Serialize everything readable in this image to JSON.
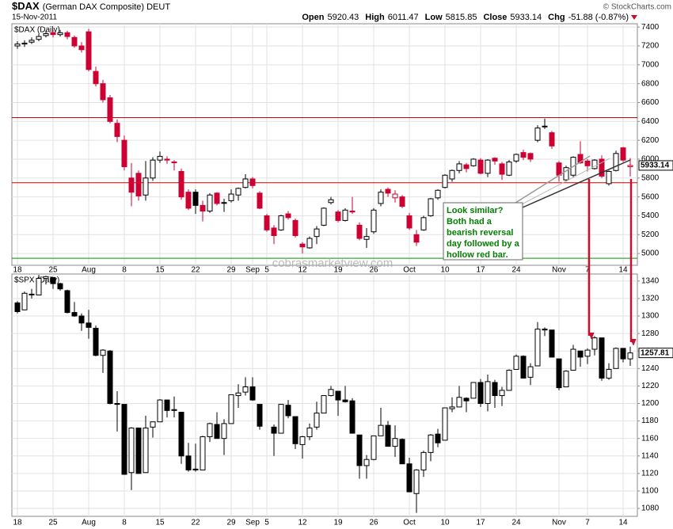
{
  "header": {
    "symbol": "$DAX",
    "name": "(German DAX Composite) DEUT",
    "date": "15-Nov-2011",
    "copyright": "© StockCharts.com",
    "quote": [
      {
        "label": "Open",
        "value": "5920.43"
      },
      {
        "label": "High",
        "value": "6011.47"
      },
      {
        "label": "Low",
        "value": "5815.85"
      },
      {
        "label": "Close",
        "value": "5933.14"
      },
      {
        "label": "Chg",
        "value": "-51.88 (-0.87%)"
      }
    ]
  },
  "watermark": "cobrasmarketview.com",
  "annotation": {
    "lines": [
      "Look similar?",
      "Both had a",
      "bearish reversal",
      "day followed by a",
      "hollow red bar."
    ]
  },
  "chart_data": [
    {
      "type": "candlestick",
      "title": "$DAX (Daily)",
      "up_color": "#000000",
      "down_color": "#cc0033",
      "grid": true,
      "categories": [
        "18",
        null,
        null,
        null,
        null,
        "25",
        null,
        null,
        null,
        null,
        "Aug",
        null,
        null,
        null,
        null,
        "8",
        null,
        null,
        null,
        null,
        "15",
        null,
        null,
        null,
        null,
        "22",
        null,
        null,
        null,
        null,
        "29",
        null,
        null,
        "Sep",
        null,
        "5",
        null,
        null,
        null,
        null,
        "12",
        null,
        null,
        null,
        null,
        "19",
        null,
        null,
        null,
        null,
        "26",
        null,
        null,
        null,
        null,
        "Oct",
        null,
        null,
        null,
        null,
        "10",
        null,
        null,
        null,
        null,
        "17",
        null,
        null,
        null,
        null,
        "24",
        null,
        null,
        null,
        null,
        null,
        "Nov",
        null,
        null,
        null,
        "7",
        null,
        null,
        null,
        null,
        "14",
        null
      ],
      "values": [
        [
          7200,
          7250,
          7170,
          7220
        ],
        [
          7220,
          7260,
          7190,
          7230
        ],
        [
          7240,
          7290,
          7220,
          7260
        ],
        [
          7270,
          7330,
          7250,
          7300
        ],
        [
          7310,
          7360,
          7290,
          7330
        ],
        [
          7340,
          7370,
          7290,
          7320
        ],
        [
          7320,
          7370,
          7300,
          7340
        ],
        [
          7340,
          7360,
          7270,
          7300
        ],
        [
          7290,
          7310,
          7180,
          7200
        ],
        [
          7200,
          7240,
          7130,
          7160
        ],
        [
          7350,
          7380,
          6930,
          6950
        ],
        [
          6930,
          6980,
          6770,
          6800
        ],
        [
          6800,
          6840,
          6600,
          6630
        ],
        [
          6650,
          6680,
          6380,
          6400
        ],
        [
          6380,
          6420,
          6180,
          6240
        ],
        [
          6200,
          6250,
          5880,
          5920
        ],
        [
          5800,
          5960,
          5500,
          5650
        ],
        [
          5850,
          5880,
          5560,
          5610
        ],
        [
          5620,
          5980,
          5560,
          5800
        ],
        [
          5800,
          6020,
          5770,
          5990
        ],
        [
          5990,
          6080,
          5960,
          6030
        ],
        [
          6000,
          6030,
          5950,
          5990
        ],
        [
          5970,
          5990,
          5880,
          5970
        ],
        [
          5870,
          5900,
          5570,
          5600
        ],
        [
          5650,
          5680,
          5460,
          5480
        ],
        [
          5650,
          5680,
          5420,
          5510
        ],
        [
          5510,
          5560,
          5340,
          5450
        ],
        [
          5450,
          5640,
          5430,
          5620
        ],
        [
          5640,
          5650,
          5510,
          5530
        ],
        [
          5540,
          5580,
          5440,
          5540
        ],
        [
          5560,
          5680,
          5540,
          5630
        ],
        [
          5620,
          5700,
          5560,
          5690
        ],
        [
          5700,
          5840,
          5690,
          5790
        ],
        [
          5790,
          5810,
          5690,
          5720
        ],
        [
          5640,
          5660,
          5470,
          5480
        ],
        [
          5400,
          5420,
          5230,
          5250
        ],
        [
          5270,
          5300,
          5100,
          5190
        ],
        [
          5250,
          5410,
          5240,
          5400
        ],
        [
          5420,
          5450,
          5360,
          5380
        ],
        [
          5350,
          5370,
          5170,
          5190
        ],
        [
          5100,
          5120,
          5000,
          5070
        ],
        [
          5060,
          5180,
          5050,
          5160
        ],
        [
          5180,
          5290,
          5100,
          5260
        ],
        [
          5300,
          5490,
          5290,
          5480
        ],
        [
          5540,
          5600,
          5520,
          5570
        ],
        [
          5440,
          5460,
          5330,
          5350
        ],
        [
          5350,
          5480,
          5340,
          5460
        ],
        [
          5450,
          5600,
          5420,
          5440
        ],
        [
          5300,
          5330,
          5140,
          5160
        ],
        [
          5150,
          5270,
          5060,
          5180
        ],
        [
          5230,
          5480,
          5210,
          5460
        ],
        [
          5530,
          5680,
          5500,
          5650
        ],
        [
          5680,
          5700,
          5600,
          5640
        ],
        [
          5590,
          5670,
          5540,
          5630
        ],
        [
          5600,
          5620,
          5480,
          5500
        ],
        [
          5400,
          5430,
          5250,
          5270
        ],
        [
          5200,
          5250,
          5080,
          5120
        ],
        [
          5250,
          5400,
          5240,
          5380
        ],
        [
          5400,
          5590,
          5390,
          5580
        ],
        [
          5590,
          5680,
          5570,
          5670
        ],
        [
          5700,
          5840,
          5690,
          5830
        ],
        [
          5790,
          5890,
          5760,
          5880
        ],
        [
          5880,
          5980,
          5850,
          5950
        ],
        [
          5940,
          5960,
          5860,
          5900
        ],
        [
          5930,
          6010,
          5920,
          6000
        ],
        [
          5990,
          6010,
          5840,
          5850
        ],
        [
          5850,
          6000,
          5810,
          5990
        ],
        [
          6010,
          6020,
          5940,
          5980
        ],
        [
          5950,
          5970,
          5780,
          5840
        ],
        [
          5830,
          5990,
          5820,
          5970
        ],
        [
          5980,
          6060,
          5960,
          6050
        ],
        [
          6070,
          6100,
          5990,
          6020
        ],
        [
          6060,
          6070,
          5970,
          6000
        ],
        [
          6200,
          6360,
          6180,
          6330
        ],
        [
          6350,
          6430,
          6320,
          6350
        ],
        [
          6280,
          6300,
          6110,
          6140
        ],
        [
          5960,
          5980,
          5760,
          5830
        ],
        [
          5780,
          5930,
          5760,
          5910
        ],
        [
          5830,
          6030,
          5810,
          6020
        ],
        [
          6050,
          6190,
          5950,
          5960
        ],
        [
          5980,
          6000,
          5870,
          5930
        ],
        [
          5900,
          6000,
          5890,
          5990
        ],
        [
          6000,
          6040,
          5800,
          5820
        ],
        [
          5740,
          5880,
          5720,
          5870
        ],
        [
          5880,
          6090,
          5870,
          6060
        ],
        [
          6120,
          6130,
          5970,
          5990
        ],
        [
          5920.43,
          6011.47,
          5815.85,
          5933.14
        ]
      ],
      "last_label": "5933.14",
      "levels": [
        {
          "value": 6440,
          "color": "#cc0000"
        },
        {
          "value": 5750,
          "color": "#cc0000"
        },
        {
          "value": 4950,
          "color": "#009900"
        }
      ],
      "ylim": [
        4875,
        7435
      ],
      "yticks": [
        5000,
        5200,
        5400,
        5600,
        5800,
        6000,
        6200,
        6400,
        6600,
        6800,
        7000,
        7200,
        7400
      ]
    },
    {
      "type": "candlestick",
      "title": "$SPX (Daily)",
      "up_color": "#000000",
      "down_color": "#000000",
      "grid": true,
      "categories": [
        "18",
        null,
        null,
        null,
        null,
        "25",
        null,
        null,
        null,
        null,
        "Aug",
        null,
        null,
        null,
        null,
        "8",
        null,
        null,
        null,
        null,
        "15",
        null,
        null,
        null,
        null,
        "22",
        null,
        null,
        null,
        null,
        "29",
        null,
        null,
        "Sep",
        null,
        "5",
        null,
        null,
        null,
        null,
        "12",
        null,
        null,
        null,
        null,
        "19",
        null,
        null,
        null,
        null,
        "26",
        null,
        null,
        null,
        null,
        "Oct",
        null,
        null,
        null,
        null,
        "10",
        null,
        null,
        null,
        null,
        "17",
        null,
        null,
        null,
        null,
        "24",
        null,
        null,
        null,
        null,
        null,
        "Nov",
        null,
        null,
        null,
        "7",
        null,
        null,
        null,
        null,
        "14",
        null
      ],
      "values": [
        [
          1315,
          1317,
          1303,
          1305
        ],
        [
          1307,
          1328,
          1307,
          1326
        ],
        [
          1325,
          1331,
          1320,
          1325
        ],
        [
          1324,
          1347,
          1324,
          1343
        ],
        [
          1343,
          1346,
          1336,
          1345
        ],
        [
          1344,
          1344,
          1331,
          1337
        ],
        [
          1337,
          1338,
          1329,
          1331
        ],
        [
          1329,
          1330,
          1303,
          1304
        ],
        [
          1304,
          1316,
          1299,
          1300
        ],
        [
          1300,
          1303,
          1283,
          1292
        ],
        [
          1292,
          1307,
          1274,
          1287
        ],
        [
          1286,
          1289,
          1254,
          1255
        ],
        [
          1255,
          1262,
          1235,
          1261
        ],
        [
          1260,
          1261,
          1199,
          1200
        ],
        [
          1200,
          1214,
          1168,
          1199
        ],
        [
          1199,
          1199,
          1119,
          1119
        ],
        [
          1121,
          1173,
          1101,
          1172
        ],
        [
          1172,
          1172,
          1120,
          1120
        ],
        [
          1121,
          1186,
          1121,
          1172
        ],
        [
          1173,
          1179,
          1161,
          1179
        ],
        [
          1179,
          1205,
          1179,
          1204
        ],
        [
          1204,
          1204,
          1184,
          1192
        ],
        [
          1192,
          1208,
          1184,
          1193
        ],
        [
          1190,
          1190,
          1131,
          1140
        ],
        [
          1140,
          1155,
          1122,
          1124
        ],
        [
          1125,
          1154,
          1122,
          1124
        ],
        [
          1124,
          1163,
          1124,
          1162
        ],
        [
          1162,
          1178,
          1156,
          1177
        ],
        [
          1176,
          1190,
          1160,
          1160
        ],
        [
          1160,
          1182,
          1141,
          1177
        ],
        [
          1177,
          1210,
          1177,
          1210
        ],
        [
          1209,
          1222,
          1195,
          1212
        ],
        [
          1213,
          1230,
          1209,
          1219
        ],
        [
          1219,
          1230,
          1203,
          1204
        ],
        [
          1199,
          1199,
          1170,
          1174
        ],
        null,
        [
          1173,
          1176,
          1140,
          1166
        ],
        [
          1166,
          1199,
          1166,
          1199
        ],
        [
          1198,
          1204,
          1183,
          1186
        ],
        [
          1185,
          1185,
          1148,
          1154
        ],
        [
          1153,
          1163,
          1137,
          1162
        ],
        [
          1162,
          1177,
          1158,
          1172
        ],
        [
          1173,
          1202,
          1170,
          1189
        ],
        [
          1189,
          1209,
          1189,
          1209
        ],
        [
          1209,
          1220,
          1208,
          1216
        ],
        [
          1214,
          1214,
          1186,
          1204
        ],
        [
          1204,
          1220,
          1201,
          1202
        ],
        [
          1203,
          1206,
          1166,
          1166
        ],
        [
          1164,
          1164,
          1114,
          1129
        ],
        [
          1129,
          1141,
          1114,
          1136
        ],
        [
          1136,
          1163,
          1135,
          1163
        ],
        [
          1163,
          1195,
          1163,
          1175
        ],
        [
          1175,
          1180,
          1151,
          1151
        ],
        [
          1151,
          1175,
          1139,
          1160
        ],
        [
          1159,
          1160,
          1131,
          1131
        ],
        [
          1131,
          1138,
          1099,
          1099
        ],
        [
          1097,
          1125,
          1075,
          1124
        ],
        [
          1124,
          1146,
          1116,
          1144
        ],
        [
          1144,
          1165,
          1134,
          1164
        ],
        [
          1165,
          1171,
          1150,
          1155
        ],
        [
          1158,
          1195,
          1158,
          1195
        ],
        [
          1194,
          1207,
          1190,
          1196
        ],
        [
          1196,
          1220,
          1196,
          1207
        ],
        [
          1206,
          1207,
          1190,
          1203
        ],
        [
          1206,
          1224,
          1206,
          1224
        ],
        [
          1224,
          1228,
          1196,
          1200
        ],
        [
          1200,
          1233,
          1191,
          1225
        ],
        [
          1224,
          1227,
          1195,
          1209
        ],
        [
          1209,
          1219,
          1197,
          1215
        ],
        [
          1215,
          1239,
          1215,
          1238
        ],
        [
          1239,
          1256,
          1239,
          1254
        ],
        [
          1254,
          1255,
          1229,
          1229
        ],
        [
          1230,
          1246,
          1221,
          1242
        ],
        [
          1243,
          1293,
          1243,
          1285
        ],
        [
          1284,
          1287,
          1277,
          1285
        ],
        [
          1284,
          1284,
          1253,
          1253
        ],
        [
          1251,
          1251,
          1215,
          1218
        ],
        [
          1219,
          1238,
          1219,
          1237
        ],
        [
          1238,
          1267,
          1238,
          1262
        ],
        [
          1260,
          1260,
          1242,
          1253
        ],
        [
          1254,
          1263,
          1245,
          1261
        ],
        [
          1262,
          1277,
          1255,
          1275
        ],
        [
          1275,
          1275,
          1226,
          1229
        ],
        [
          1229,
          1246,
          1227,
          1239
        ],
        [
          1240,
          1264,
          1240,
          1263
        ],
        [
          1263,
          1263,
          1247,
          1251
        ],
        [
          1251,
          1265,
          1243,
          1257.81
        ]
      ],
      "last_label": "1257.81",
      "ylim": [
        1071,
        1348
      ],
      "yticks": [
        1080,
        1100,
        1120,
        1140,
        1160,
        1180,
        1200,
        1220,
        1240,
        1260,
        1280,
        1300,
        1320,
        1340
      ]
    }
  ]
}
